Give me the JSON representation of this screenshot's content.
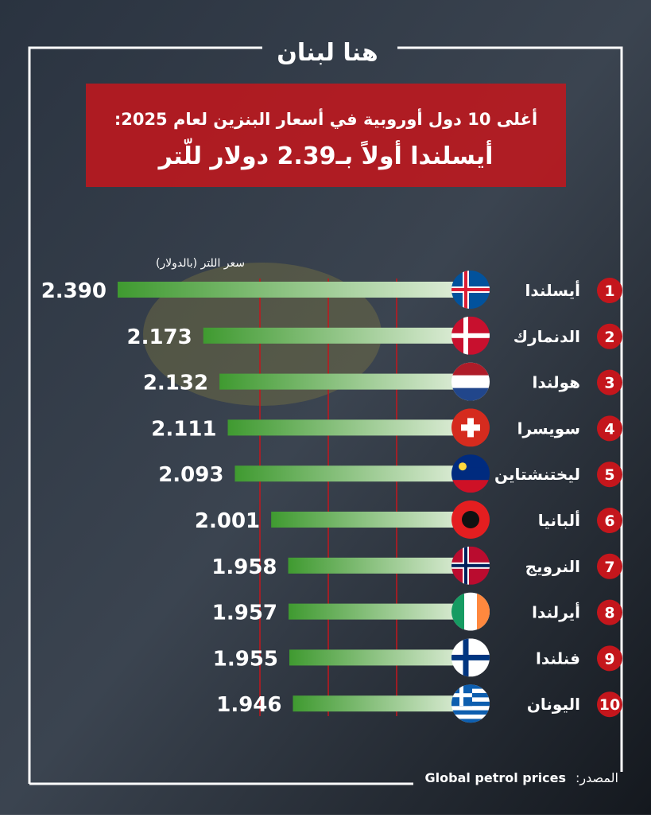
{
  "logo": "هنا لبنان",
  "chart_data": {
    "type": "bar",
    "title": "أغلى 10 دول أوروبية في أسعار البنزين لعام 2025:",
    "subtitle": "أيسلندا أولاً بـ2.39 دولار للّتر",
    "axis_label": "سعر اللتر (بالدولار)",
    "ranks": [
      1,
      2,
      3,
      4,
      5,
      6,
      7,
      8,
      9,
      10
    ],
    "categories": [
      "أيسلندا",
      "الدنمارك",
      "هولندا",
      "سويسرا",
      "ليختنشتاين",
      "ألبانيا",
      "النرويج",
      "أيرلندا",
      "فنلندا",
      "اليونان"
    ],
    "values": [
      2.39,
      2.173,
      2.132,
      2.111,
      2.093,
      2.001,
      1.958,
      1.957,
      1.955,
      1.946
    ],
    "value_labels": [
      "2.390",
      "2.173",
      "2.132",
      "2.111",
      "2.093",
      "2.001",
      "1.958",
      "1.957",
      "1.955",
      "1.946"
    ],
    "xlim": [
      1.5,
      2.4
    ],
    "color": "#4aa23a"
  },
  "source_label": "المصدر:",
  "source": "Global petrol prices"
}
